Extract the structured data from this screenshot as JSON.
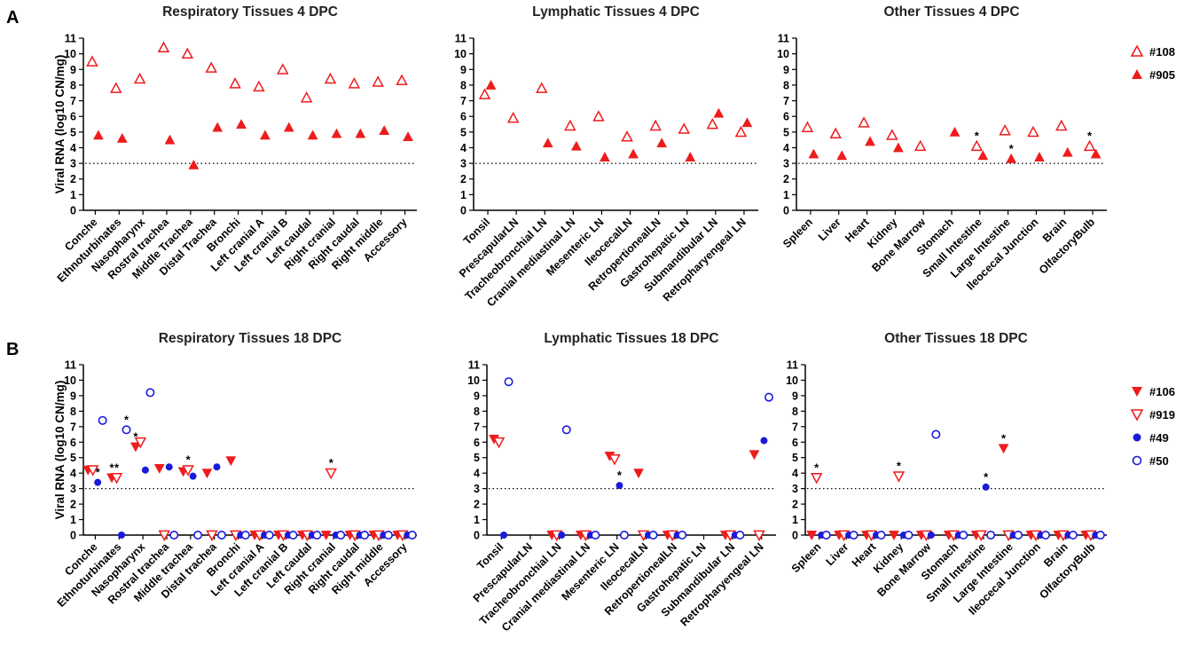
{
  "panels": [
    {
      "letter": "A"
    },
    {
      "letter": "B"
    }
  ],
  "legend_a": [
    {
      "name": "#108",
      "marker": "triangle-up-open"
    },
    {
      "name": "#905",
      "marker": "triangle-up-filled"
    }
  ],
  "legend_b": [
    {
      "name": "#106",
      "marker": "triangle-down-filled"
    },
    {
      "name": "#919",
      "marker": "triangle-down-open"
    },
    {
      "name": "#49",
      "marker": "circle-filled"
    },
    {
      "name": "#50",
      "marker": "circle-open"
    }
  ],
  "colors": {
    "red": "#ee1c1c",
    "blue": "#1a1adc",
    "threshold": "#000000"
  },
  "chart_data": [
    {
      "type": "scatter",
      "title": "Respiratory Tissues 4 DPC",
      "ylabel": "Viral RNA (log10 CN/mg)",
      "ylim": [
        0,
        11
      ],
      "yticks": [
        0,
        1,
        2,
        3,
        4,
        5,
        6,
        7,
        8,
        9,
        10,
        11
      ],
      "threshold": 3,
      "categories": [
        "Conche",
        "Ethnoturbinates",
        "Nasopharynx",
        "Rostral trachea",
        "Middle Trachea",
        "Distal Trachea",
        "Bronchi",
        "Left cranial A",
        "Left cranial B",
        "Left caudal",
        "Right cranial",
        "Right caudal",
        "Right middle",
        "Accessory"
      ],
      "series": [
        {
          "name": "#108",
          "marker": "triangle-up-open",
          "color": "#ee1c1c",
          "values": [
            9.5,
            7.8,
            8.4,
            10.4,
            10.0,
            9.1,
            8.1,
            7.9,
            9.0,
            7.2,
            8.4,
            8.1,
            8.2,
            8.3
          ]
        },
        {
          "name": "#905",
          "marker": "triangle-up-filled",
          "color": "#ee1c1c",
          "values": [
            4.8,
            4.6,
            null,
            4.5,
            2.9,
            5.3,
            5.5,
            4.8,
            5.3,
            4.8,
            4.9,
            4.9,
            5.1,
            4.7
          ]
        }
      ],
      "annotations": []
    },
    {
      "type": "scatter",
      "title": "Lymphatic Tissues 4 DPC",
      "ylabel": "",
      "ylim": [
        0,
        11
      ],
      "yticks": [
        0,
        1,
        2,
        3,
        4,
        5,
        6,
        7,
        8,
        9,
        10,
        11
      ],
      "threshold": 3,
      "categories": [
        "Tonsil",
        "PrescapularLN",
        "Tracheobronchial LN",
        "Cranial mediastinal LN",
        "Mesenteric LN",
        "IleocecalLN",
        "RetropertionealLN",
        "Gastrohepatic LN",
        "Submandibular LN",
        "Retropharyengeal LN"
      ],
      "series": [
        {
          "name": "#108",
          "marker": "triangle-up-open",
          "color": "#ee1c1c",
          "values": [
            7.4,
            5.9,
            7.8,
            5.4,
            6.0,
            4.7,
            5.4,
            5.2,
            5.5,
            5.0
          ]
        },
        {
          "name": "#905",
          "marker": "triangle-up-filled",
          "color": "#ee1c1c",
          "values": [
            8.0,
            null,
            4.3,
            4.1,
            3.4,
            3.6,
            4.3,
            3.4,
            6.2,
            5.6
          ]
        }
      ],
      "annotations": []
    },
    {
      "type": "scatter",
      "title": "Other Tissues 4 DPC",
      "ylabel": "",
      "ylim": [
        0,
        11
      ],
      "yticks": [
        0,
        1,
        2,
        3,
        4,
        5,
        6,
        7,
        8,
        9,
        10,
        11
      ],
      "threshold": 3,
      "categories": [
        "Spleen",
        "Liver",
        "Heart",
        "Kidney",
        "Bone Marrow",
        "Stomach",
        "Small Intestine",
        "Large Intestine",
        "Ileocecal Junction",
        "Brain",
        "OlfactoryBulb"
      ],
      "series": [
        {
          "name": "#108",
          "marker": "triangle-up-open",
          "color": "#ee1c1c",
          "values": [
            5.3,
            4.9,
            5.6,
            4.8,
            4.1,
            null,
            4.1,
            5.1,
            5.0,
            5.4,
            4.1
          ]
        },
        {
          "name": "#905",
          "marker": "triangle-up-filled",
          "color": "#ee1c1c",
          "values": [
            3.6,
            3.5,
            4.4,
            4.0,
            null,
            5.0,
            3.5,
            3.3,
            3.4,
            3.7,
            3.6
          ]
        }
      ],
      "annotations": [
        {
          "category": 6,
          "series": 0,
          "text": "*"
        },
        {
          "category": 7,
          "series": 1,
          "text": "*"
        },
        {
          "category": 10,
          "series": 0,
          "text": "*"
        }
      ]
    },
    {
      "type": "scatter",
      "title": "Respiratory Tissues 18 DPC",
      "ylabel": "Viral RNA (log10 CN/mg)",
      "ylim": [
        0,
        11
      ],
      "yticks": [
        0,
        1,
        2,
        3,
        4,
        5,
        6,
        7,
        8,
        9,
        10,
        11
      ],
      "threshold": 3,
      "categories": [
        "Conche",
        "Ethnoturbinates",
        "Nasopharynx",
        "Rostral trachea",
        "Middle trachea",
        "Distal trachea",
        "Bronchi",
        "Left cranial A",
        "Left cranial B",
        "Left caudal",
        "Right cranial",
        "Right caudal",
        "Right middle",
        "Accessory"
      ],
      "series": [
        {
          "name": "#106",
          "marker": "triangle-down-filled",
          "color": "#ee1c1c",
          "values": [
            4.2,
            3.7,
            5.7,
            4.3,
            4.1,
            4.0,
            4.8,
            0,
            0,
            0,
            0,
            0,
            0,
            0
          ]
        },
        {
          "name": "#919",
          "marker": "triangle-down-open",
          "color": "#ee1c1c",
          "values": [
            4.2,
            3.7,
            6.0,
            0,
            4.2,
            0,
            0,
            0,
            0,
            0,
            4.0,
            0,
            0,
            0
          ]
        },
        {
          "name": "#49",
          "marker": "circle-filled",
          "color": "#1a1adc",
          "values": [
            3.4,
            0,
            4.2,
            4.4,
            3.8,
            4.4,
            0,
            0,
            0,
            0,
            0,
            0,
            0,
            0
          ]
        },
        {
          "name": "#50",
          "marker": "circle-open",
          "color": "#1a1adc",
          "values": [
            7.4,
            6.8,
            9.2,
            0,
            0,
            0,
            0,
            0,
            0,
            0,
            0,
            0,
            0,
            0
          ]
        }
      ],
      "annotations": [
        {
          "category": 0,
          "series": 2,
          "text": "*"
        },
        {
          "category": 1,
          "series": 0,
          "text": "*"
        },
        {
          "category": 1,
          "series": 1,
          "text": "*"
        },
        {
          "category": 1,
          "series": 3,
          "text": "*"
        },
        {
          "category": 2,
          "series": 0,
          "text": "*"
        },
        {
          "category": 4,
          "series": 1,
          "text": "*"
        },
        {
          "category": 10,
          "series": 1,
          "text": "*"
        }
      ]
    },
    {
      "type": "scatter",
      "title": "Lymphatic Tissues 18 DPC",
      "ylabel": "",
      "ylim": [
        0,
        11
      ],
      "yticks": [
        0,
        1,
        2,
        3,
        4,
        5,
        6,
        7,
        8,
        9,
        10,
        11
      ],
      "threshold": 3,
      "categories": [
        "Tonsil",
        "PrescapularLN",
        "Tracheobronchial LN",
        "Cranial mediastinal LN",
        "Mesenteric LN",
        "IleocecalLN",
        "RetropertionealLN",
        "Gastrohepatic LN",
        "Submandibular LN",
        "Retropharyengeal LN"
      ],
      "series": [
        {
          "name": "#106",
          "marker": "triangle-down-filled",
          "color": "#ee1c1c",
          "values": [
            6.2,
            null,
            0,
            0,
            5.1,
            4.0,
            0,
            null,
            0,
            5.2
          ]
        },
        {
          "name": "#919",
          "marker": "triangle-down-open",
          "color": "#ee1c1c",
          "values": [
            6.0,
            null,
            0,
            0,
            4.9,
            0,
            0,
            null,
            0,
            0
          ]
        },
        {
          "name": "#49",
          "marker": "circle-filled",
          "color": "#1a1adc",
          "values": [
            0,
            null,
            0,
            0,
            3.2,
            0,
            0,
            null,
            0,
            6.1
          ]
        },
        {
          "name": "#50",
          "marker": "circle-open",
          "color": "#1a1adc",
          "values": [
            9.9,
            null,
            6.8,
            0,
            0,
            0,
            0,
            null,
            0,
            8.9
          ]
        }
      ],
      "annotations": [
        {
          "category": 4,
          "series": 2,
          "text": "*"
        }
      ]
    },
    {
      "type": "scatter",
      "title": "Other Tissues 18 DPC",
      "ylabel": "",
      "ylim": [
        0,
        11
      ],
      "yticks": [
        0,
        1,
        2,
        3,
        4,
        5,
        6,
        7,
        8,
        9,
        10,
        11
      ],
      "threshold": 3,
      "categories": [
        "Spleen",
        "Liver",
        "Heart",
        "Kidney",
        "Bone Marrow",
        "Stomach",
        "Small Intestine",
        "Large Intestine",
        "Ileocecal Junction",
        "Brain",
        "OlfactoryBulb"
      ],
      "series": [
        {
          "name": "#106",
          "marker": "triangle-down-filled",
          "color": "#ee1c1c",
          "values": [
            0,
            0,
            0,
            0,
            0,
            0,
            0,
            5.6,
            0,
            0,
            0
          ]
        },
        {
          "name": "#919",
          "marker": "triangle-down-open",
          "color": "#ee1c1c",
          "values": [
            3.7,
            0,
            0,
            3.8,
            0,
            0,
            0,
            0,
            0,
            0,
            0
          ]
        },
        {
          "name": "#49",
          "marker": "circle-filled",
          "color": "#1a1adc",
          "values": [
            0,
            0,
            0,
            0,
            0,
            0,
            3.1,
            0,
            0,
            0,
            0
          ]
        },
        {
          "name": "#50",
          "marker": "circle-open",
          "color": "#1a1adc",
          "values": [
            0,
            0,
            0,
            0,
            6.5,
            0,
            0,
            0,
            0,
            0,
            0
          ]
        }
      ],
      "annotations": [
        {
          "category": 0,
          "series": 1,
          "text": "*"
        },
        {
          "category": 3,
          "series": 1,
          "text": "*"
        },
        {
          "category": 6,
          "series": 2,
          "text": "*"
        },
        {
          "category": 7,
          "series": 0,
          "text": "*"
        }
      ]
    }
  ]
}
